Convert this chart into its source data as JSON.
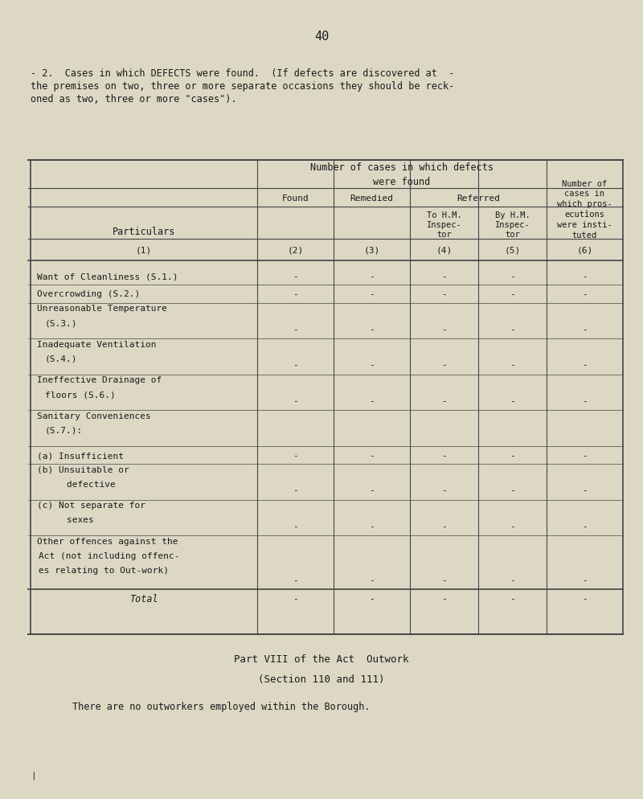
{
  "bg_color": "#ddd8c4",
  "text_color": "#1a1a1a",
  "page_number": "40",
  "intro_lines": [
    "- 2.  Cases in which DEFECTS were found.  (If defects are discovered at  -",
    "the premises on two, three or more separate occasions they should be reck-",
    "oned as two, three or more \"cases\")."
  ],
  "col_nums": [
    "(1)",
    "(2)",
    "(3)",
    "(4)",
    "(5)",
    "(6)"
  ],
  "particulars_label": "Particulars",
  "rows": [
    {
      "label": "Want of Cleanliness (S.1.)",
      "label2": "",
      "values": [
        "-",
        "-",
        "-",
        "-",
        "-"
      ]
    },
    {
      "label": "Overcrowding (S.2.)",
      "label2": "",
      "values": [
        "-",
        "-",
        "-",
        "-",
        "-"
      ]
    },
    {
      "label": "Unreasonable Temperature",
      "label2": "(S.3.)",
      "values": [
        "-",
        "-",
        "-",
        "-",
        "-"
      ]
    },
    {
      "label": "Inadequate Ventilation",
      "label2": "(S.4.)",
      "values": [
        "-",
        "-",
        "-",
        "-",
        "-"
      ]
    },
    {
      "label": "Ineffective Drainage of",
      "label2": "floors (S.6.)",
      "values": [
        "-",
        "-",
        "-",
        "-",
        "-"
      ]
    },
    {
      "label": "Sanitary Conveniences",
      "label2": "(S.7.):",
      "values": [
        "",
        "",
        "",
        "",
        ""
      ]
    },
    {
      "label": "(a) Insufficient",
      "label2": "",
      "values": [
        "-",
        "-",
        "-",
        "-",
        "-"
      ]
    },
    {
      "label": "(b) Unsuitable or",
      "label2": "    defective",
      "values": [
        "-",
        "-",
        "-",
        "-",
        "-"
      ]
    },
    {
      "label": "(c) Not separate for",
      "label2": "    sexes",
      "values": [
        "-",
        "-",
        "-",
        "-",
        "-"
      ]
    },
    {
      "label": "Other offences against the",
      "label2": "Act (not including offenc-",
      "label3": "es relating to Out-work)",
      "values": [
        "-",
        "-",
        "-",
        "-",
        "-"
      ]
    },
    {
      "label": "Total",
      "label2": "",
      "values": [
        "-",
        "-",
        "-",
        "-",
        "-"
      ],
      "is_total": true
    }
  ],
  "footer_line1": "Part VIII of the Act  Outwork",
  "footer_line2": "(Section 110 and 111)",
  "footer_line3": "There are no outworkers employed within the Borough."
}
